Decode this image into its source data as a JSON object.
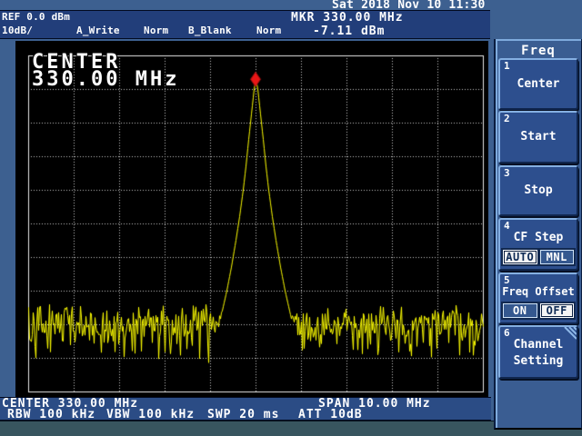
{
  "statusbar": {
    "datetime": "Sat 2018 Nov 10 11:30"
  },
  "header": {
    "ref_level": "REF 0.0 dBm",
    "scale": "10dB/",
    "trace_a_label": "A_Write",
    "trace_a_detector": "Norm",
    "trace_b_label": "B_Blank",
    "trace_b_detector": "Norm",
    "marker_freq": "MKR 330.00 MHz",
    "marker_level": "-7.11 dBm"
  },
  "display_overlay": {
    "line1": "CENTER",
    "line2": "330.00 MHz"
  },
  "footer": {
    "center": "CENTER 330.00 MHz",
    "span": "SPAN 10.00 MHz",
    "rbw": "RBW 100 kHz",
    "vbw": "VBW 100 kHz",
    "sweep": "SWP 20 ms",
    "att": "ATT 10dB"
  },
  "sidebar": {
    "title": "Freq",
    "buttons": [
      {
        "num": "1",
        "label": "Center"
      },
      {
        "num": "2",
        "label": "Start"
      },
      {
        "num": "3",
        "label": "Stop"
      },
      {
        "num": "4",
        "label": "CF Step",
        "options": [
          "AUTO",
          "MNL"
        ],
        "selected": "AUTO"
      },
      {
        "num": "5",
        "label": "Freq Offset",
        "options": [
          "ON",
          "OFF"
        ],
        "selected": "OFF"
      },
      {
        "num": "6",
        "lines": [
          "Channel",
          "Setting"
        ],
        "has_submenu": true
      }
    ]
  },
  "chart_data": {
    "type": "line",
    "title": "Spectrum analyzer trace",
    "x_axis": {
      "center_mhz": 330.0,
      "span_mhz": 10.0,
      "start_mhz": 325.0,
      "stop_mhz": 335.0,
      "divisions": 10
    },
    "y_axis": {
      "ref_dbm": 0.0,
      "db_per_div": 10,
      "divisions": 10,
      "min_dbm": -100
    },
    "grid": "dotted 10x10, solid border",
    "series": [
      {
        "name": "A_Write",
        "color": "#ffff00",
        "peak": {
          "freq_mhz": 330.0,
          "level_dbm": -7.11
        },
        "noise_floor_dbm": -83,
        "noise_peak_to_peak_db": 14,
        "skirt_profile_mhz_dbm": [
          [
            0.0,
            -7.11
          ],
          [
            0.04,
            -10
          ],
          [
            0.08,
            -15
          ],
          [
            0.12,
            -20
          ],
          [
            0.16,
            -25
          ],
          [
            0.22,
            -33
          ],
          [
            0.28,
            -40
          ],
          [
            0.36,
            -48
          ],
          [
            0.44,
            -55
          ],
          [
            0.54,
            -63
          ],
          [
            0.64,
            -70
          ],
          [
            0.74,
            -76
          ],
          [
            0.84,
            -82
          ],
          [
            0.94,
            -88
          ]
        ]
      }
    ],
    "marker": {
      "freq_mhz": 330.0,
      "level_dbm": -7.11,
      "shape": "diamond",
      "color": "#e81616"
    }
  },
  "colors": {
    "background": "#3d6090",
    "header_band": "#223e7a",
    "footer_band": "#2b4c85",
    "screen_bg": "#000000",
    "grid": "#c9c9c9",
    "grid_border": "#e8e8e8",
    "trace": "#ffff00",
    "marker": "#e81616",
    "softkey_fill": "#2d4f8e",
    "bottom_strip": "#38555f"
  }
}
